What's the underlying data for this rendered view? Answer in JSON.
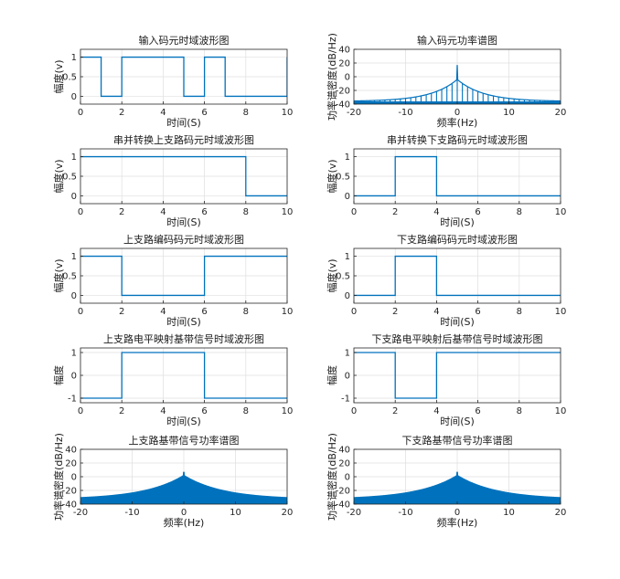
{
  "chart_data": [
    {
      "type": "line",
      "title": "输入码元时域波形图",
      "xlabel": "时间(S)",
      "ylabel": "幅度(v)",
      "xlim": [
        0,
        10
      ],
      "ylim": [
        -0.2,
        1.2
      ],
      "xticks": [
        0,
        2,
        4,
        6,
        8,
        10
      ],
      "yticks": [
        0,
        0.5,
        1
      ],
      "yticklabels": [
        "0",
        "0.5",
        "1"
      ],
      "grid": true,
      "series": [
        {
          "color": "#0072BD",
          "x": [
            0,
            1,
            1,
            2,
            2,
            5,
            5,
            6,
            6,
            7,
            7,
            10,
            10
          ],
          "y": [
            1,
            1,
            0,
            0,
            1,
            1,
            0,
            0,
            1,
            1,
            0,
            0,
            1
          ]
        }
      ]
    },
    {
      "type": "line",
      "title": "输入码元功率谱图",
      "xlabel": "频率(Hz)",
      "ylabel": "功率谱密度(dB/Hz)",
      "xlim": [
        -20,
        20
      ],
      "ylim": [
        -40,
        40
      ],
      "xticks": [
        -20,
        -10,
        0,
        10,
        20
      ],
      "yticks": [
        -40,
        -20,
        0,
        20,
        40
      ],
      "yticklabels": [
        "-40",
        "-20",
        "0",
        "20",
        "40"
      ],
      "grid": true,
      "series": [
        {
          "color": "#0072BD",
          "spectrum": {
            "peak": 17,
            "envelope_at_0": -4,
            "spacing": 1,
            "floor": -40,
            "edge_level": -36,
            "decay": 0.18,
            "fill_floor": -36
          }
        }
      ]
    },
    {
      "type": "line",
      "title": "串并转换上支路码元时域波形图",
      "xlabel": "时间(S)",
      "ylabel": "幅度(v)",
      "xlim": [
        0,
        10
      ],
      "ylim": [
        -0.2,
        1.2
      ],
      "xticks": [
        0,
        2,
        4,
        6,
        8,
        10
      ],
      "yticks": [
        0,
        0.5,
        1
      ],
      "yticklabels": [
        "0",
        "0.5",
        "1"
      ],
      "grid": true,
      "series": [
        {
          "color": "#0072BD",
          "x": [
            0,
            8,
            8,
            10
          ],
          "y": [
            1,
            1,
            0,
            0
          ]
        }
      ]
    },
    {
      "type": "line",
      "title": "串并转换下支路码元时域波形图",
      "xlabel": "时间(S)",
      "ylabel": "幅度(v)",
      "xlim": [
        0,
        10
      ],
      "ylim": [
        -0.2,
        1.2
      ],
      "xticks": [
        0,
        2,
        4,
        6,
        8,
        10
      ],
      "yticks": [
        0,
        0.5,
        1
      ],
      "yticklabels": [
        "0",
        "0.5",
        "1"
      ],
      "grid": true,
      "series": [
        {
          "color": "#0072BD",
          "x": [
            0,
            2,
            2,
            4,
            4,
            10
          ],
          "y": [
            0,
            0,
            1,
            1,
            0,
            0
          ]
        }
      ]
    },
    {
      "type": "line",
      "title": "上支路编码码元时域波形图",
      "xlabel": "时间(S)",
      "ylabel": "幅度(v)",
      "xlim": [
        0,
        10
      ],
      "ylim": [
        -0.2,
        1.2
      ],
      "xticks": [
        0,
        2,
        4,
        6,
        8,
        10
      ],
      "yticks": [
        0,
        0.5,
        1
      ],
      "yticklabels": [
        "0",
        "0.5",
        "1"
      ],
      "grid": true,
      "series": [
        {
          "color": "#0072BD",
          "x": [
            0,
            2,
            2,
            6,
            6,
            10
          ],
          "y": [
            1,
            1,
            0,
            0,
            1,
            1
          ]
        }
      ]
    },
    {
      "type": "line",
      "title": "下支路编码码元时域波形图",
      "xlabel": "时间(S)",
      "ylabel": "幅度(v)",
      "xlim": [
        0,
        10
      ],
      "ylim": [
        -0.2,
        1.2
      ],
      "xticks": [
        0,
        2,
        4,
        6,
        8,
        10
      ],
      "yticks": [
        0,
        0.5,
        1
      ],
      "yticklabels": [
        "0",
        "0.5",
        "1"
      ],
      "grid": true,
      "series": [
        {
          "color": "#0072BD",
          "x": [
            0,
            2,
            2,
            4,
            4,
            10
          ],
          "y": [
            0,
            0,
            1,
            1,
            0,
            0
          ]
        }
      ]
    },
    {
      "type": "line",
      "title": "上支路电平映射基带信号时域波形图",
      "xlabel": "时间(S)",
      "ylabel": "幅度",
      "xlim": [
        0,
        10
      ],
      "ylim": [
        -1.2,
        1.2
      ],
      "xticks": [
        0,
        2,
        4,
        6,
        8,
        10
      ],
      "yticks": [
        -1,
        0,
        1
      ],
      "yticklabels": [
        "-1",
        "0",
        "1"
      ],
      "grid": true,
      "series": [
        {
          "color": "#0072BD",
          "x": [
            0,
            2,
            2,
            6,
            6,
            10
          ],
          "y": [
            -1,
            -1,
            1,
            1,
            -1,
            -1
          ]
        }
      ]
    },
    {
      "type": "line",
      "title": "下支路电平映射后基带信号时域波形图",
      "xlabel": "时间(S)",
      "ylabel": "幅度",
      "xlim": [
        0,
        10
      ],
      "ylim": [
        -1.2,
        1.2
      ],
      "xticks": [
        0,
        2,
        4,
        6,
        8,
        10
      ],
      "yticks": [
        -1,
        0,
        1
      ],
      "yticklabels": [
        "-1",
        "0",
        "1"
      ],
      "grid": true,
      "series": [
        {
          "color": "#0072BD",
          "x": [
            0,
            2,
            2,
            4,
            4,
            10
          ],
          "y": [
            1,
            1,
            -1,
            -1,
            1,
            1
          ]
        }
      ]
    },
    {
      "type": "line",
      "title": "上支路基带信号功率谱图",
      "xlabel": "频率(Hz)",
      "ylabel": "功率谱密度(dB/Hz)",
      "xlim": [
        -20,
        20
      ],
      "ylim": [
        -40,
        40
      ],
      "xticks": [
        -20,
        -10,
        0,
        10,
        20
      ],
      "yticks": [
        -40,
        -20,
        0,
        20,
        40
      ],
      "yticklabels": [
        "-40",
        "-20",
        "0",
        "20",
        "40"
      ],
      "grid": true,
      "series": [
        {
          "color": "#0072BD",
          "spectrum": {
            "peak": 7,
            "envelope_at_0": 2,
            "spacing": 0.25,
            "floor": -40,
            "edge_level": -33,
            "decay": 0.12,
            "fill_floor": -33
          }
        }
      ]
    },
    {
      "type": "line",
      "title": "下支路基带信号功率谱图",
      "xlabel": "频率(Hz)",
      "ylabel": "功率谱密度(dB/Hz)",
      "xlim": [
        -20,
        20
      ],
      "ylim": [
        -40,
        40
      ],
      "xticks": [
        -20,
        -10,
        0,
        10,
        20
      ],
      "yticks": [
        -40,
        -20,
        0,
        20,
        40
      ],
      "yticklabels": [
        "-40",
        "-20",
        "0",
        "20",
        "40"
      ],
      "grid": true,
      "series": [
        {
          "color": "#0072BD",
          "spectrum": {
            "peak": 7,
            "envelope_at_0": 2,
            "spacing": 0.25,
            "floor": -40,
            "edge_level": -33,
            "decay": 0.12,
            "fill_floor": -33
          }
        }
      ]
    }
  ]
}
